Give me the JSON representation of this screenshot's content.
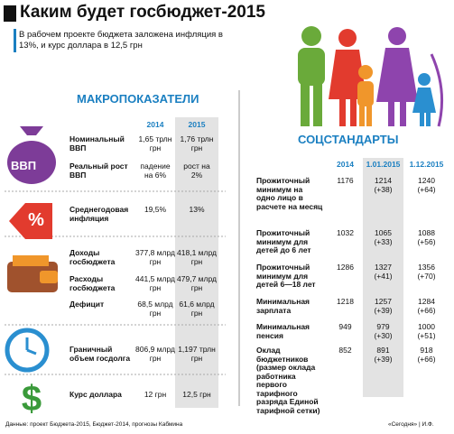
{
  "header": {
    "title": "Каким будет госбюджет-2015",
    "subtitle": "В рабочем проекте бюджета заложена инфляция в 13%, и курс доллара в 12,5 грн"
  },
  "macro": {
    "title": "МАКРОПОКАЗАТЕЛИ",
    "icon_label": "ВВП",
    "columns": [
      "2014",
      "2015"
    ],
    "rows": [
      [
        "Номинальный ВВП",
        "1,65 трлн грн",
        "1,76 трлн грн"
      ],
      [
        "Реальный рост ВВП",
        "падение на 6%",
        "рост на 2%"
      ],
      [
        "Среднегодовая инфляция",
        "19,5%",
        "13%"
      ],
      [
        "Доходы госбюджета",
        "377,8 млрд грн",
        "418,1 млрд грн"
      ],
      [
        "Расходы госбюджета",
        "441,5 млрд грн",
        "479,7 млрд грн"
      ],
      [
        "Дефицит",
        "68,5 млрд грн",
        "61,6 млрд грн"
      ],
      [
        "Граничный объем госдолга",
        "806,9 млрд грн",
        "1,197 трлн грн"
      ],
      [
        "Курс доллара",
        "12 грн",
        "12,5 грн"
      ]
    ]
  },
  "social": {
    "title": "СОЦСТАНДАРТЫ",
    "columns": [
      "2014",
      "1.01.2015",
      "1.12.2015"
    ],
    "rows": [
      [
        "Прожиточный минимум на одно лицо в расчете на месяц",
        "1176",
        "1214",
        "(+38)",
        "1240",
        "(+64)"
      ],
      [
        "Прожиточный минимум для детей до 6 лет",
        "1032",
        "1065",
        "(+33)",
        "1088",
        "(+56)"
      ],
      [
        "Прожиточный минимум для детей 6—18 лет",
        "1286",
        "1327",
        "(+41)",
        "1356",
        "(+70)"
      ],
      [
        "Минимальная зарплата",
        "1218",
        "1257",
        "(+39)",
        "1284",
        "(+66)"
      ],
      [
        "Минимальная пенсия",
        "949",
        "979",
        "(+30)",
        "1000",
        "(+51)"
      ],
      [
        "Оклад бюджетников (размер оклада работника первого тарифного разряда Единой тарифной сетки)",
        "852",
        "891",
        "(+39)",
        "918",
        "(+66)"
      ]
    ]
  },
  "footer": {
    "source": "Данные: проект Бюджета-2015, Бюджет-2014, прогнозы Кабмина",
    "credit": "«Сегодня» | И.Ф."
  }
}
